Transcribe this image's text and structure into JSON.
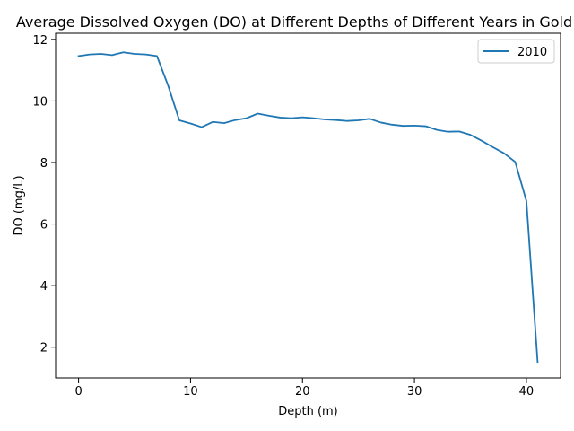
{
  "chart_data": {
    "type": "line",
    "title": "Average Dissolved Oxygen (DO) at Different Depths of Different Years in Gold",
    "xlabel": "Depth (m)",
    "ylabel": "DO (mg/L)",
    "xlim": [
      -2.05,
      43.05
    ],
    "ylim": [
      1.0,
      12.2
    ],
    "xticks": [
      0,
      10,
      20,
      30,
      40
    ],
    "yticks": [
      2,
      4,
      6,
      8,
      10,
      12
    ],
    "grid": false,
    "legend_position": "top-right",
    "series": [
      {
        "name": "2010",
        "color": "#1f77b4",
        "x": [
          0,
          1,
          2,
          3,
          4,
          5,
          6,
          7,
          8,
          9,
          10,
          11,
          12,
          13,
          14,
          15,
          16,
          17,
          18,
          19,
          20,
          21,
          22,
          23,
          24,
          25,
          26,
          27,
          28,
          29,
          30,
          31,
          32,
          33,
          34,
          35,
          36,
          37,
          38,
          39,
          40,
          41
        ],
        "y": [
          11.46,
          11.51,
          11.53,
          11.49,
          11.58,
          11.53,
          11.51,
          11.46,
          10.5,
          9.37,
          9.27,
          9.15,
          9.32,
          9.28,
          9.38,
          9.44,
          9.59,
          9.52,
          9.46,
          9.44,
          9.47,
          9.44,
          9.4,
          9.38,
          9.35,
          9.37,
          9.42,
          9.3,
          9.23,
          9.19,
          9.2,
          9.18,
          9.06,
          9.0,
          9.01,
          8.9,
          8.71,
          8.5,
          8.3,
          8.02,
          6.75,
          1.52
        ]
      }
    ]
  }
}
